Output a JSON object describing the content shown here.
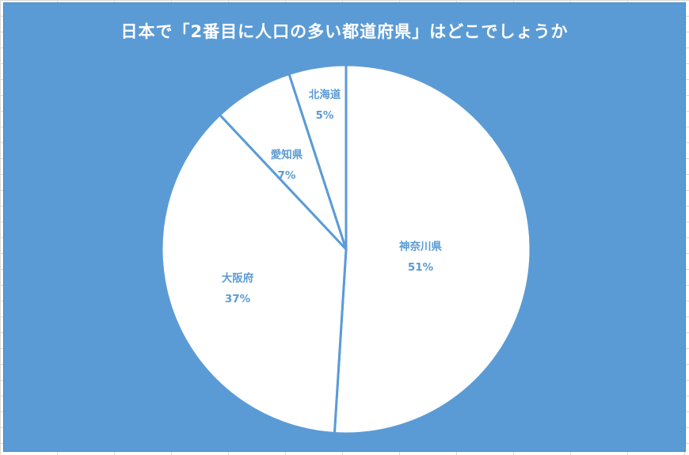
{
  "chart_data": {
    "type": "pie",
    "title": "日本で「2番目に人口の多い都道府県」はどこでしょうか",
    "slices": [
      {
        "name": "神奈川県",
        "value": 51,
        "label": "51%"
      },
      {
        "name": "大阪府",
        "value": 37,
        "label": "37%"
      },
      {
        "name": "愛知県",
        "value": 7,
        "label": "7%"
      },
      {
        "name": "北海道",
        "value": 5,
        "label": "5%"
      }
    ],
    "start_angle_deg": 0,
    "direction": "clockwise",
    "legend": "none",
    "colors": {
      "background": "#5b9bd5",
      "slice_fill": "#ffffff",
      "slice_border": "#5b9bd5",
      "title_text": "#ffffff",
      "label_text": "#5b9bd5"
    }
  }
}
